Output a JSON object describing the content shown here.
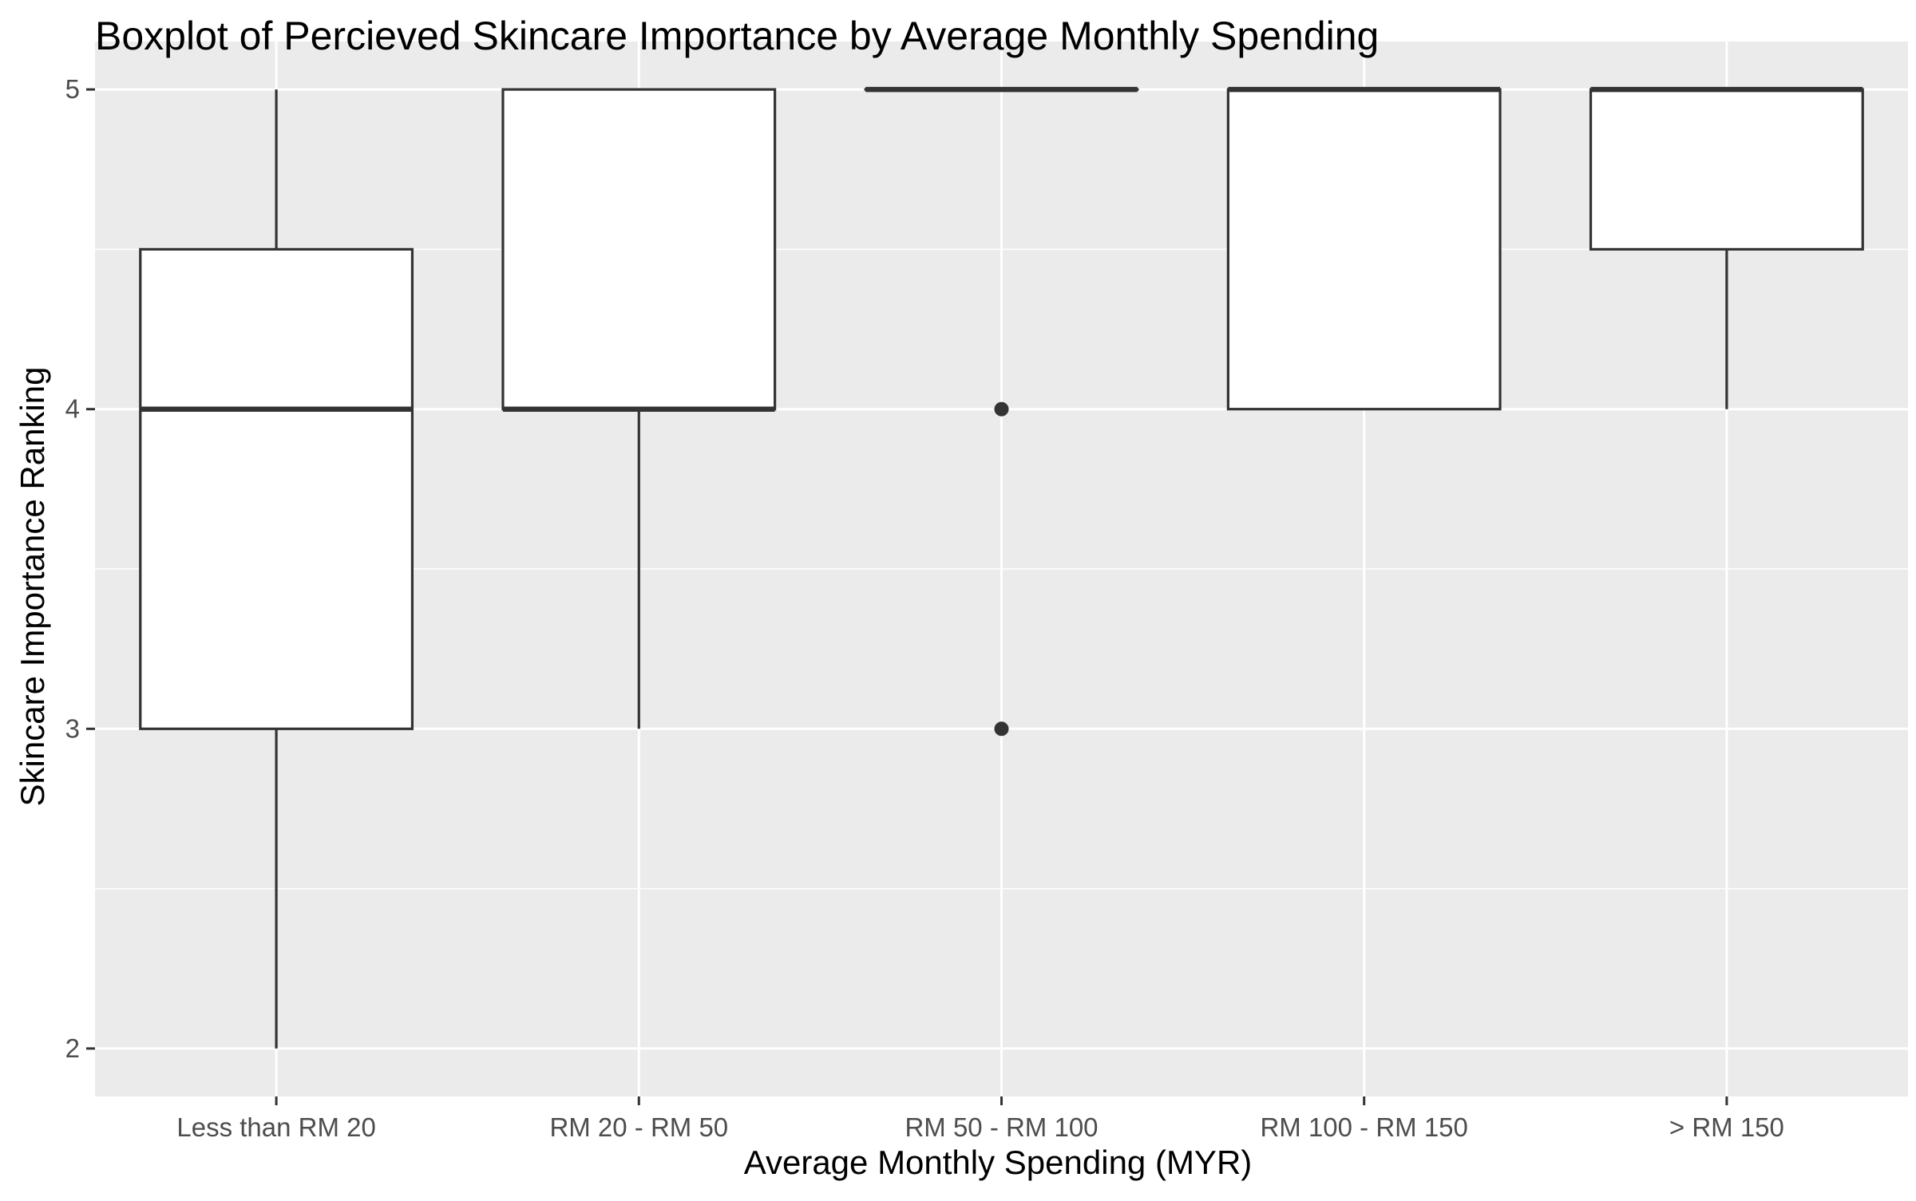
{
  "chart_data": {
    "type": "boxplot",
    "title": "Boxplot of Percieved Skincare Importance by Average Monthly Spending",
    "xlabel": "Average Monthly Spending (MYR)",
    "ylabel": "Skincare Importance Ranking",
    "ylim": [
      1.85,
      5.15
    ],
    "y_ticks": [
      2,
      3,
      4,
      5
    ],
    "y_tick_labels": [
      "2",
      "3",
      "4",
      "5"
    ],
    "grid": true,
    "categories": [
      "Less than RM 20",
      "RM 20 - RM 50",
      "RM 50 - RM 100",
      "RM 100 - RM 150",
      "> RM 150"
    ],
    "boxes": [
      {
        "category": "Less than RM 20",
        "whisker_low": 2,
        "q1": 3,
        "median": 4,
        "q3": 4.5,
        "whisker_high": 5,
        "outliers": []
      },
      {
        "category": "RM 20 - RM 50",
        "whisker_low": 3,
        "q1": 4,
        "median": 4,
        "q3": 5,
        "whisker_high": 5,
        "outliers": []
      },
      {
        "category": "RM 50 - RM 100",
        "whisker_low": 5,
        "q1": 5,
        "median": 5,
        "q3": 5,
        "whisker_high": 5,
        "outliers": [
          4,
          3
        ]
      },
      {
        "category": "RM 100 - RM 150",
        "whisker_low": 4,
        "q1": 4,
        "median": 5,
        "q3": 5,
        "whisker_high": 5,
        "outliers": []
      },
      {
        "category": "> RM 150",
        "whisker_low": 4,
        "q1": 4.5,
        "median": 5,
        "q3": 5,
        "whisker_high": 5,
        "outliers": []
      }
    ],
    "colors": {
      "panel_background": "#ebebeb",
      "grid": "#ffffff",
      "box_fill": "#ffffff",
      "box_stroke": "#333333",
      "tick_text": "#4d4d4d",
      "tick_mark": "#333333"
    }
  }
}
